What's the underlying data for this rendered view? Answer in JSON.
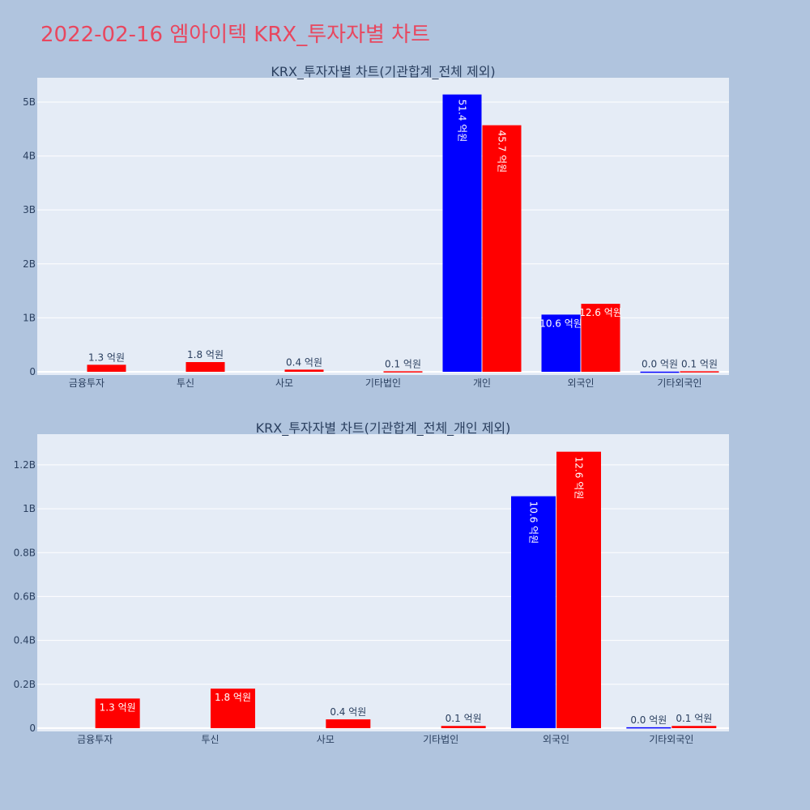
{
  "page": {
    "title": "2022-02-16 엠아이텍 KRX_투자자별 차트"
  },
  "colors": {
    "background": "#b0c4de",
    "plot_bg": "#e5ecf6",
    "grid": "#ffffff",
    "title": "#e8475f",
    "series_a": "#0000ff",
    "series_b": "#ff0000",
    "text": "#2a3f5f"
  },
  "chart_data": [
    {
      "type": "bar",
      "title": "KRX_투자자별 차트(기관합계_전체 제외)",
      "xlabel": "",
      "ylabel": "",
      "categories": [
        "금융투자",
        "투신",
        "사모",
        "기타법인",
        "개인",
        "외국인",
        "기타외국인"
      ],
      "ylim": [
        -60000000,
        5450000000
      ],
      "yticks": [
        {
          "value": 0,
          "label": "0"
        },
        {
          "value": 1000000000,
          "label": "1B"
        },
        {
          "value": 2000000000,
          "label": "2B"
        },
        {
          "value": 3000000000,
          "label": "3B"
        },
        {
          "value": 4000000000,
          "label": "4B"
        },
        {
          "value": 5000000000,
          "label": "5B"
        }
      ],
      "grid": true,
      "series": [
        {
          "color": "#0000ff",
          "values": [
            0,
            0,
            0,
            0,
            5140000000,
            1060000000,
            4000000
          ],
          "labels": [
            "",
            "",
            "",
            "",
            "51.4 억원",
            "10.6 억원",
            "0.0 억원"
          ]
        },
        {
          "color": "#ff0000",
          "values": [
            130000000,
            180000000,
            40000000,
            10000000,
            4570000000,
            1260000000,
            10000000
          ],
          "labels": [
            "1.3 억원",
            "1.8 억원",
            "0.4 억원",
            "0.1 억원",
            "45.7 억원",
            "12.6 억원",
            "0.1 억원"
          ]
        }
      ]
    },
    {
      "type": "bar",
      "title": "KRX_투자자별 차트(기관합계_전체_개인 제외)",
      "xlabel": "",
      "ylabel": "",
      "categories": [
        "금융투자",
        "투신",
        "사모",
        "기타법인",
        "외국인",
        "기타외국인"
      ],
      "ylim": [
        -15000000,
        1340000000
      ],
      "yticks": [
        {
          "value": 0,
          "label": "0"
        },
        {
          "value": 200000000,
          "label": "0.2B"
        },
        {
          "value": 400000000,
          "label": "0.4B"
        },
        {
          "value": 600000000,
          "label": "0.6B"
        },
        {
          "value": 800000000,
          "label": "0.8B"
        },
        {
          "value": 1000000000,
          "label": "1B"
        },
        {
          "value": 1200000000,
          "label": "1.2B"
        }
      ],
      "grid": true,
      "series": [
        {
          "color": "#0000ff",
          "values": [
            0,
            0,
            0,
            0,
            1057000000,
            4000000
          ],
          "labels": [
            "",
            "",
            "",
            "",
            "10.6 억원",
            "0.0 억원"
          ]
        },
        {
          "color": "#ff0000",
          "values": [
            135000000,
            180000000,
            40000000,
            10000000,
            1260000000,
            10000000
          ],
          "labels": [
            "1.3 억원",
            "1.8 억원",
            "0.4 억원",
            "0.1 억원",
            "12.6 억원",
            "0.1 억원"
          ]
        }
      ]
    }
  ]
}
